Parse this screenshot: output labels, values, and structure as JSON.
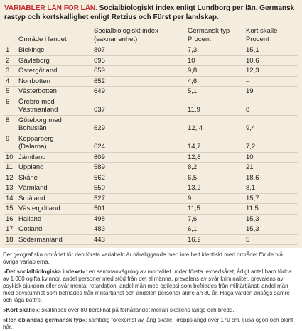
{
  "title": {
    "lead": "VARIABLER LÄN FÖR LÄN.",
    "text": "Socialbiologiskt index enligt Lundborg per län. Germansk rastyp och kortskallighet enligt Retzius och Fürst per landskap."
  },
  "table": {
    "header": {
      "area": "Område i landet",
      "index": [
        "Socialbiologiskt index",
        "(saknar enhet)"
      ],
      "germ": [
        "Germansk typ",
        "Procent"
      ],
      "kort": [
        "Kort skalle",
        "Procent"
      ]
    },
    "rows": [
      [
        "1",
        [
          "Blekinge"
        ],
        "807",
        "7,3",
        "15,1"
      ],
      [
        "2",
        [
          "Gävleborg"
        ],
        "695",
        "10",
        "10,6"
      ],
      [
        "3",
        [
          "Östergötland"
        ],
        "659",
        "9,8",
        "12,3"
      ],
      [
        "4",
        [
          "Norrbotten"
        ],
        "652",
        "4,6",
        "–"
      ],
      [
        "5",
        [
          "Västerbotten"
        ],
        "649",
        "5,1",
        "19"
      ],
      [
        "6",
        [
          "Örebro med",
          "Västmanland"
        ],
        "637",
        "11,9",
        "8"
      ],
      [
        "8",
        [
          "Göteborg med",
          "Bohuslän"
        ],
        "629",
        "12,,4",
        "9,4"
      ],
      [
        "9",
        [
          "Kopparberg",
          "(Dalarna)"
        ],
        "624",
        "14,7",
        "7,2"
      ],
      [
        "10",
        [
          "Jämtland"
        ],
        "609",
        "12,6",
        "10"
      ],
      [
        "11",
        [
          "Uppland"
        ],
        "589",
        "8,2",
        "21"
      ],
      [
        "12",
        [
          "Skåne"
        ],
        "562",
        "6,5",
        "18,6"
      ],
      [
        "13",
        [
          "Värmland"
        ],
        "550",
        "13,2",
        "8,1"
      ],
      [
        "14",
        [
          "Småland"
        ],
        "527",
        "9",
        "15,7"
      ],
      [
        "15",
        [
          "Västergötland"
        ],
        "501",
        "11,5",
        "11,5"
      ],
      [
        "16",
        [
          "Halland"
        ],
        "498",
        "7,6",
        "15,3"
      ],
      [
        "17",
        [
          "Gotland"
        ],
        "483",
        "6,1",
        "15,3"
      ],
      [
        "18",
        [
          "Södermanland"
        ],
        "443",
        "16,2",
        "5"
      ]
    ]
  },
  "notes": [
    {
      "text": "Det geografiska området för den första variabeln är näraliggande men inte helt identiskt med området för de två övriga variablerna."
    },
    {
      "label": "»Det socialbiologiska indexet«",
      "text": ": en sammanvägning av mortalitet under första levnadsåret, årligt antal barn födda av 1 000 ogifta kvinnor, andel personer med stöd från det allmänna, prevalens av svår kriminalitet, prevalens av psykisk sjukdom eller svår mental retardation, andel män med epilepsi som befriades från militärtjänst, andel män med dövstumhet som befriades från militärtjänst och andelen personer äldre än 80 år. Höga värden ansågs sämre och låga bättre."
    },
    {
      "label": "»Kort skalle«",
      "text": ": skallindex över 80 beräknat på förhållandet mellan skallens längd och bredd."
    },
    {
      "label": "»Ren oblandad germansk typ«",
      "text": ": samtidig förekomst av lång skalle, kroppslängd över 170 cm, ljusa ögon och blont hår."
    }
  ]
}
